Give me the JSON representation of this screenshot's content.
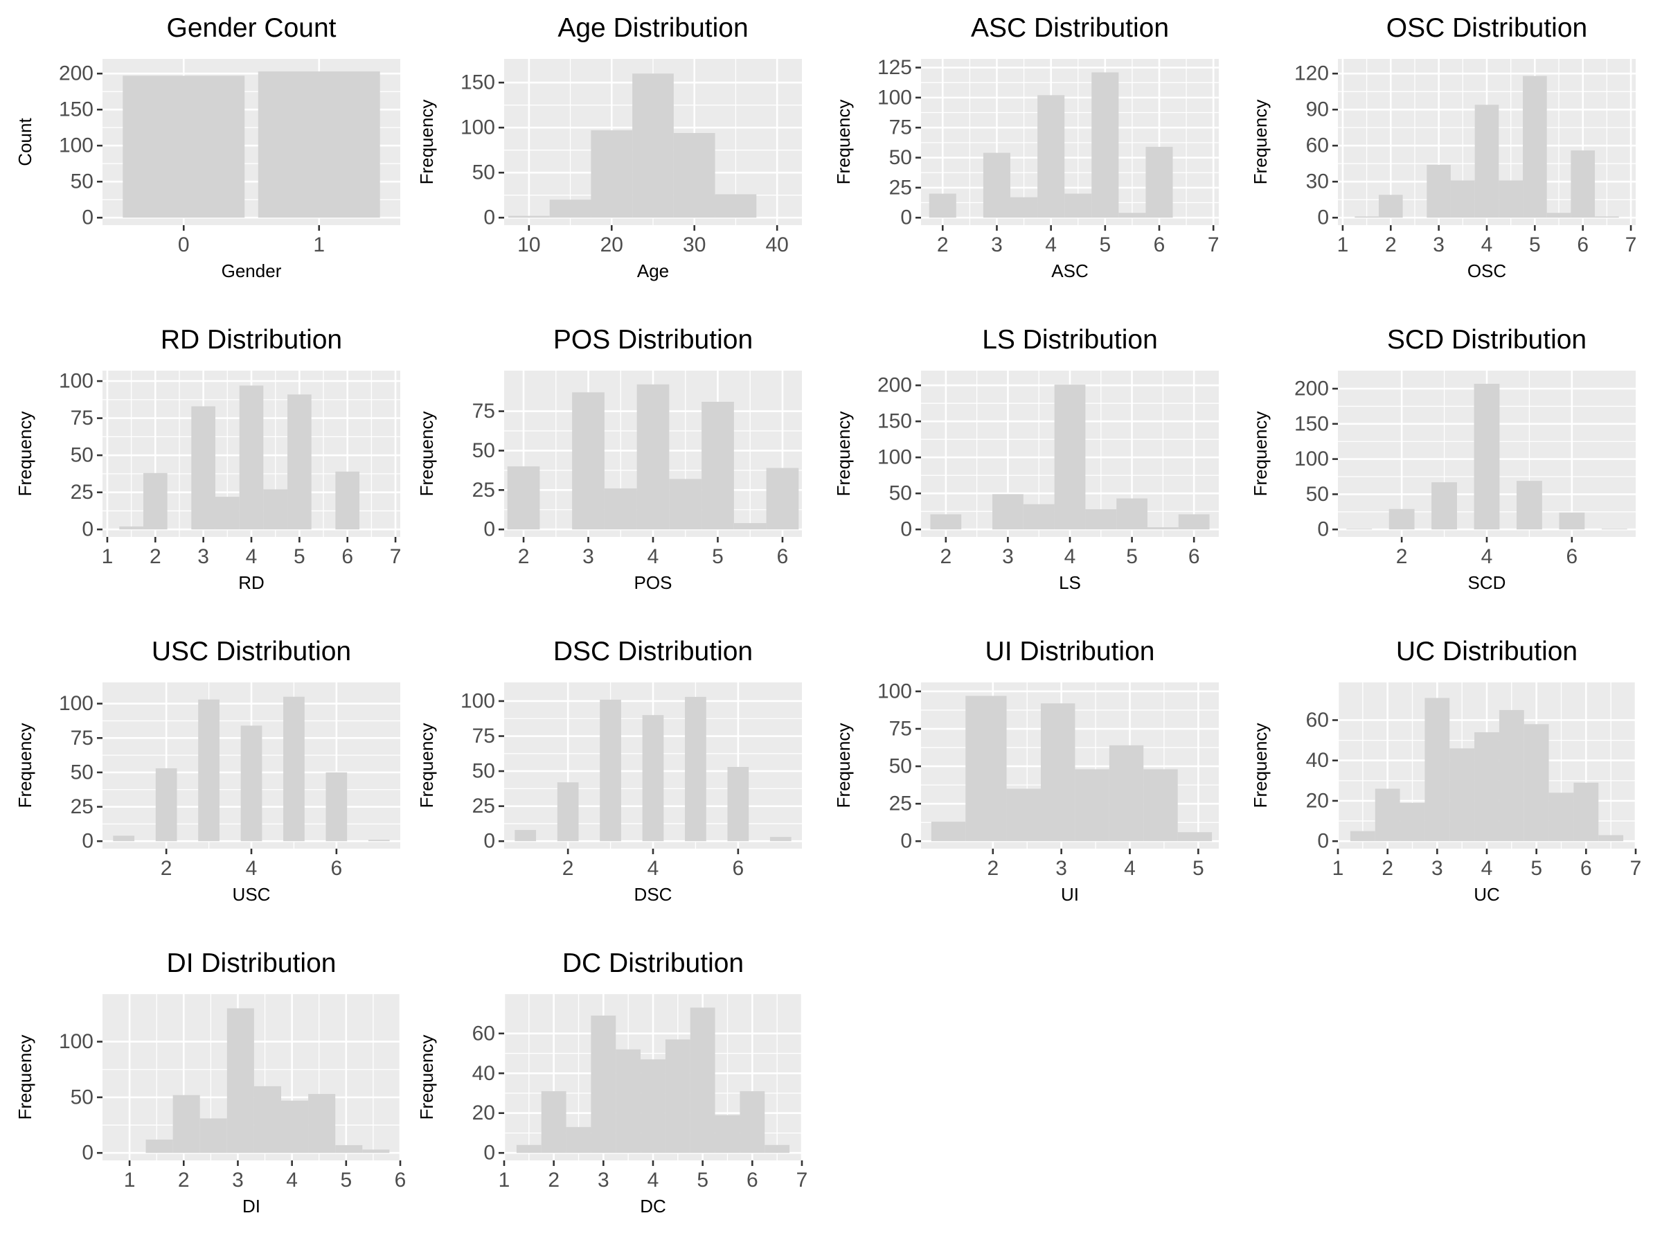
{
  "chart_data": [
    {
      "type": "bar",
      "title": "Gender Count",
      "xlabel": "Gender",
      "ylabel": "Count",
      "categories": [
        "0",
        "1"
      ],
      "values": [
        197,
        203
      ],
      "ylim": [
        0,
        210
      ],
      "yticks": [
        0,
        50,
        100,
        150,
        200
      ],
      "grid": true
    },
    {
      "type": "histogram",
      "title": "Age Distribution",
      "xlabel": "Age",
      "ylabel": "Frequency",
      "xlim": [
        7,
        43
      ],
      "ylim": [
        0,
        168
      ],
      "xticks": [
        10,
        20,
        30,
        40
      ],
      "yticks": [
        0,
        50,
        100,
        150
      ],
      "bins": [
        [
          7.5,
          12.5,
          2
        ],
        [
          12.5,
          17.5,
          20
        ],
        [
          17.5,
          22.5,
          97
        ],
        [
          22.5,
          27.5,
          160
        ],
        [
          27.5,
          32.5,
          94
        ],
        [
          32.5,
          37.5,
          26
        ],
        [
          37.5,
          42.5,
          0
        ]
      ],
      "grid": true
    },
    {
      "type": "histogram",
      "title": "ASC Distribution",
      "xlabel": "ASC",
      "ylabel": "Frequency",
      "xlim": [
        1.6,
        7.1
      ],
      "ylim": [
        0,
        126
      ],
      "xticks": [
        2,
        3,
        4,
        5,
        6,
        7
      ],
      "yticks": [
        0,
        25,
        50,
        75,
        100,
        125
      ],
      "bins": [
        [
          1.75,
          2.25,
          20
        ],
        [
          2.25,
          2.75,
          0
        ],
        [
          2.75,
          3.25,
          54
        ],
        [
          3.25,
          3.75,
          17
        ],
        [
          3.75,
          4.25,
          102
        ],
        [
          4.25,
          4.75,
          20
        ],
        [
          4.75,
          5.25,
          121
        ],
        [
          5.25,
          5.75,
          4
        ],
        [
          5.75,
          6.25,
          59
        ],
        [
          6.25,
          6.75,
          0
        ]
      ],
      "grid": true
    },
    {
      "type": "histogram",
      "title": "OSC Distribution",
      "xlabel": "OSC",
      "ylabel": "Frequency",
      "xlim": [
        0.9,
        7.1
      ],
      "ylim": [
        0,
        126
      ],
      "xticks": [
        1,
        2,
        3,
        4,
        5,
        6,
        7
      ],
      "yticks": [
        0,
        30,
        60,
        90,
        120
      ],
      "bins": [
        [
          1.25,
          1.75,
          1
        ],
        [
          1.75,
          2.25,
          19
        ],
        [
          2.25,
          2.75,
          0
        ],
        [
          2.75,
          3.25,
          44
        ],
        [
          3.25,
          3.75,
          31
        ],
        [
          3.75,
          4.25,
          94
        ],
        [
          4.25,
          4.75,
          31
        ],
        [
          4.75,
          5.25,
          118
        ],
        [
          5.25,
          5.75,
          4
        ],
        [
          5.75,
          6.25,
          56
        ],
        [
          6.25,
          6.75,
          1
        ]
      ],
      "grid": true
    },
    {
      "type": "histogram",
      "title": "RD Distribution",
      "xlabel": "RD",
      "ylabel": "Frequency",
      "xlim": [
        0.9,
        7.1
      ],
      "ylim": [
        0,
        102
      ],
      "xticks": [
        1,
        2,
        3,
        4,
        5,
        6,
        7
      ],
      "yticks": [
        0,
        25,
        50,
        75,
        100
      ],
      "bins": [
        [
          1.25,
          1.75,
          2
        ],
        [
          1.75,
          2.25,
          38
        ],
        [
          2.25,
          2.75,
          0
        ],
        [
          2.75,
          3.25,
          83
        ],
        [
          3.25,
          3.75,
          22
        ],
        [
          3.75,
          4.25,
          97
        ],
        [
          4.25,
          4.75,
          27
        ],
        [
          4.75,
          5.25,
          91
        ],
        [
          5.25,
          5.75,
          0
        ],
        [
          5.75,
          6.25,
          39
        ],
        [
          6.25,
          6.75,
          0
        ]
      ],
      "grid": true
    },
    {
      "type": "histogram",
      "title": "POS Distribution",
      "xlabel": "POS",
      "ylabel": "Frequency",
      "xlim": [
        1.7,
        6.3
      ],
      "ylim": [
        0,
        96
      ],
      "xticks": [
        2,
        3,
        4,
        5,
        6
      ],
      "yticks": [
        0,
        25,
        50,
        75
      ],
      "bins": [
        [
          1.75,
          2.25,
          40
        ],
        [
          2.25,
          2.75,
          0
        ],
        [
          2.75,
          3.25,
          87
        ],
        [
          3.25,
          3.75,
          26
        ],
        [
          3.75,
          4.25,
          92
        ],
        [
          4.25,
          4.75,
          32
        ],
        [
          4.75,
          5.25,
          81
        ],
        [
          5.25,
          5.75,
          4
        ],
        [
          5.75,
          6.25,
          39
        ]
      ],
      "grid": true
    },
    {
      "type": "histogram",
      "title": "LS Distribution",
      "xlabel": "LS",
      "ylabel": "Frequency",
      "xlim": [
        1.6,
        6.4
      ],
      "ylim": [
        0,
        210
      ],
      "xticks": [
        2,
        3,
        4,
        5,
        6
      ],
      "yticks": [
        0,
        50,
        100,
        150,
        200
      ],
      "bins": [
        [
          1.75,
          2.25,
          21
        ],
        [
          2.25,
          2.75,
          0
        ],
        [
          2.75,
          3.25,
          49
        ],
        [
          3.25,
          3.75,
          35
        ],
        [
          3.75,
          4.25,
          201
        ],
        [
          4.25,
          4.75,
          28
        ],
        [
          4.75,
          5.25,
          43
        ],
        [
          5.25,
          5.75,
          3
        ],
        [
          5.75,
          6.25,
          21
        ]
      ],
      "grid": true
    },
    {
      "type": "histogram",
      "title": "SCD Distribution",
      "xlabel": "SCD",
      "ylabel": "Frequency",
      "xlim": [
        0.5,
        7.5
      ],
      "ylim": [
        0,
        215
      ],
      "xticks": [
        2,
        4,
        6
      ],
      "yticks": [
        0,
        50,
        100,
        150,
        200
      ],
      "bins": [
        [
          0.7,
          1.3,
          1
        ],
        [
          1.7,
          2.3,
          29
        ],
        [
          2.7,
          3.3,
          67
        ],
        [
          3.7,
          4.3,
          207
        ],
        [
          4.7,
          5.3,
          69
        ],
        [
          5.7,
          6.3,
          24
        ],
        [
          6.7,
          7.3,
          1
        ]
      ],
      "grid": true
    },
    {
      "type": "histogram",
      "title": "USC Distribution",
      "xlabel": "USC",
      "ylabel": "Frequency",
      "xlim": [
        0.5,
        7.5
      ],
      "ylim": [
        0,
        110
      ],
      "xticks": [
        2,
        4,
        6
      ],
      "yticks": [
        0,
        25,
        50,
        75,
        100
      ],
      "bins": [
        [
          0.75,
          1.25,
          4
        ],
        [
          1.75,
          2.25,
          53
        ],
        [
          2.75,
          3.25,
          103
        ],
        [
          3.75,
          4.25,
          84
        ],
        [
          4.75,
          5.25,
          105
        ],
        [
          5.75,
          6.25,
          50
        ],
        [
          6.75,
          7.25,
          1
        ]
      ],
      "grid": true
    },
    {
      "type": "histogram",
      "title": "DSC Distribution",
      "xlabel": "DSC",
      "ylabel": "Frequency",
      "xlim": [
        0.5,
        7.5
      ],
      "ylim": [
        0,
        108
      ],
      "xticks": [
        2,
        4,
        6
      ],
      "yticks": [
        0,
        25,
        50,
        75,
        100
      ],
      "bins": [
        [
          0.75,
          1.25,
          8
        ],
        [
          1.75,
          2.25,
          42
        ],
        [
          2.75,
          3.25,
          101
        ],
        [
          3.75,
          4.25,
          90
        ],
        [
          4.75,
          5.25,
          103
        ],
        [
          5.75,
          6.25,
          53
        ],
        [
          6.75,
          7.25,
          3
        ]
      ],
      "grid": true
    },
    {
      "type": "histogram",
      "title": "UI Distribution",
      "xlabel": "UI",
      "ylabel": "Frequency",
      "xlim": [
        0.95,
        5.3
      ],
      "ylim": [
        0,
        101
      ],
      "xticks": [
        2,
        3,
        4,
        5
      ],
      "yticks": [
        0,
        25,
        50,
        75,
        100
      ],
      "bins": [
        [
          1.1,
          1.6,
          13
        ],
        [
          1.6,
          2.2,
          97
        ],
        [
          2.2,
          2.7,
          35
        ],
        [
          2.7,
          3.2,
          92
        ],
        [
          3.2,
          3.7,
          48
        ],
        [
          3.7,
          4.2,
          64
        ],
        [
          4.2,
          4.7,
          48
        ],
        [
          4.7,
          5.2,
          6
        ]
      ],
      "grid": true
    },
    {
      "type": "histogram",
      "title": "UC Distribution",
      "xlabel": "UC",
      "ylabel": "Frequency",
      "xlim": [
        1.0,
        7.0
      ],
      "ylim": [
        0,
        75
      ],
      "xticks": [
        1,
        2,
        3,
        4,
        5,
        6,
        7
      ],
      "yticks": [
        0,
        20,
        40,
        60
      ],
      "bins": [
        [
          1.25,
          1.75,
          5
        ],
        [
          1.75,
          2.25,
          26
        ],
        [
          2.25,
          2.75,
          19
        ],
        [
          2.75,
          3.25,
          71
        ],
        [
          3.25,
          3.75,
          46
        ],
        [
          3.75,
          4.25,
          54
        ],
        [
          4.25,
          4.75,
          65
        ],
        [
          4.75,
          5.25,
          58
        ],
        [
          5.25,
          5.75,
          24
        ],
        [
          5.75,
          6.25,
          29
        ],
        [
          6.25,
          6.75,
          3
        ]
      ],
      "grid": true
    },
    {
      "type": "histogram",
      "title": "DI Distribution",
      "xlabel": "DI",
      "ylabel": "Frequency",
      "xlim": [
        0.5,
        6.0
      ],
      "ylim": [
        0,
        136
      ],
      "xticks": [
        1,
        2,
        3,
        4,
        5,
        6
      ],
      "yticks": [
        0,
        50,
        100
      ],
      "bins": [
        [
          0.6,
          1.3,
          0
        ],
        [
          1.3,
          1.8,
          12
        ],
        [
          1.8,
          2.3,
          52
        ],
        [
          2.3,
          2.8,
          31
        ],
        [
          2.8,
          3.3,
          130
        ],
        [
          3.3,
          3.8,
          60
        ],
        [
          3.8,
          4.3,
          47
        ],
        [
          4.3,
          4.8,
          53
        ],
        [
          4.8,
          5.3,
          7
        ],
        [
          5.3,
          5.8,
          3
        ]
      ],
      "grid": true
    },
    {
      "type": "histogram",
      "title": "DC Distribution",
      "xlabel": "DC",
      "ylabel": "Frequency",
      "xlim": [
        1.0,
        7.0
      ],
      "ylim": [
        0,
        76
      ],
      "xticks": [
        1,
        2,
        3,
        4,
        5,
        6,
        7
      ],
      "yticks": [
        0,
        20,
        40,
        60
      ],
      "bins": [
        [
          1.25,
          1.75,
          4
        ],
        [
          1.75,
          2.25,
          31
        ],
        [
          2.25,
          2.75,
          13
        ],
        [
          2.75,
          3.25,
          69
        ],
        [
          3.25,
          3.75,
          52
        ],
        [
          3.75,
          4.25,
          47
        ],
        [
          4.25,
          4.75,
          57
        ],
        [
          4.75,
          5.25,
          73
        ],
        [
          5.25,
          5.75,
          19
        ],
        [
          5.75,
          6.25,
          31
        ],
        [
          6.25,
          6.75,
          4
        ]
      ],
      "grid": true
    }
  ]
}
